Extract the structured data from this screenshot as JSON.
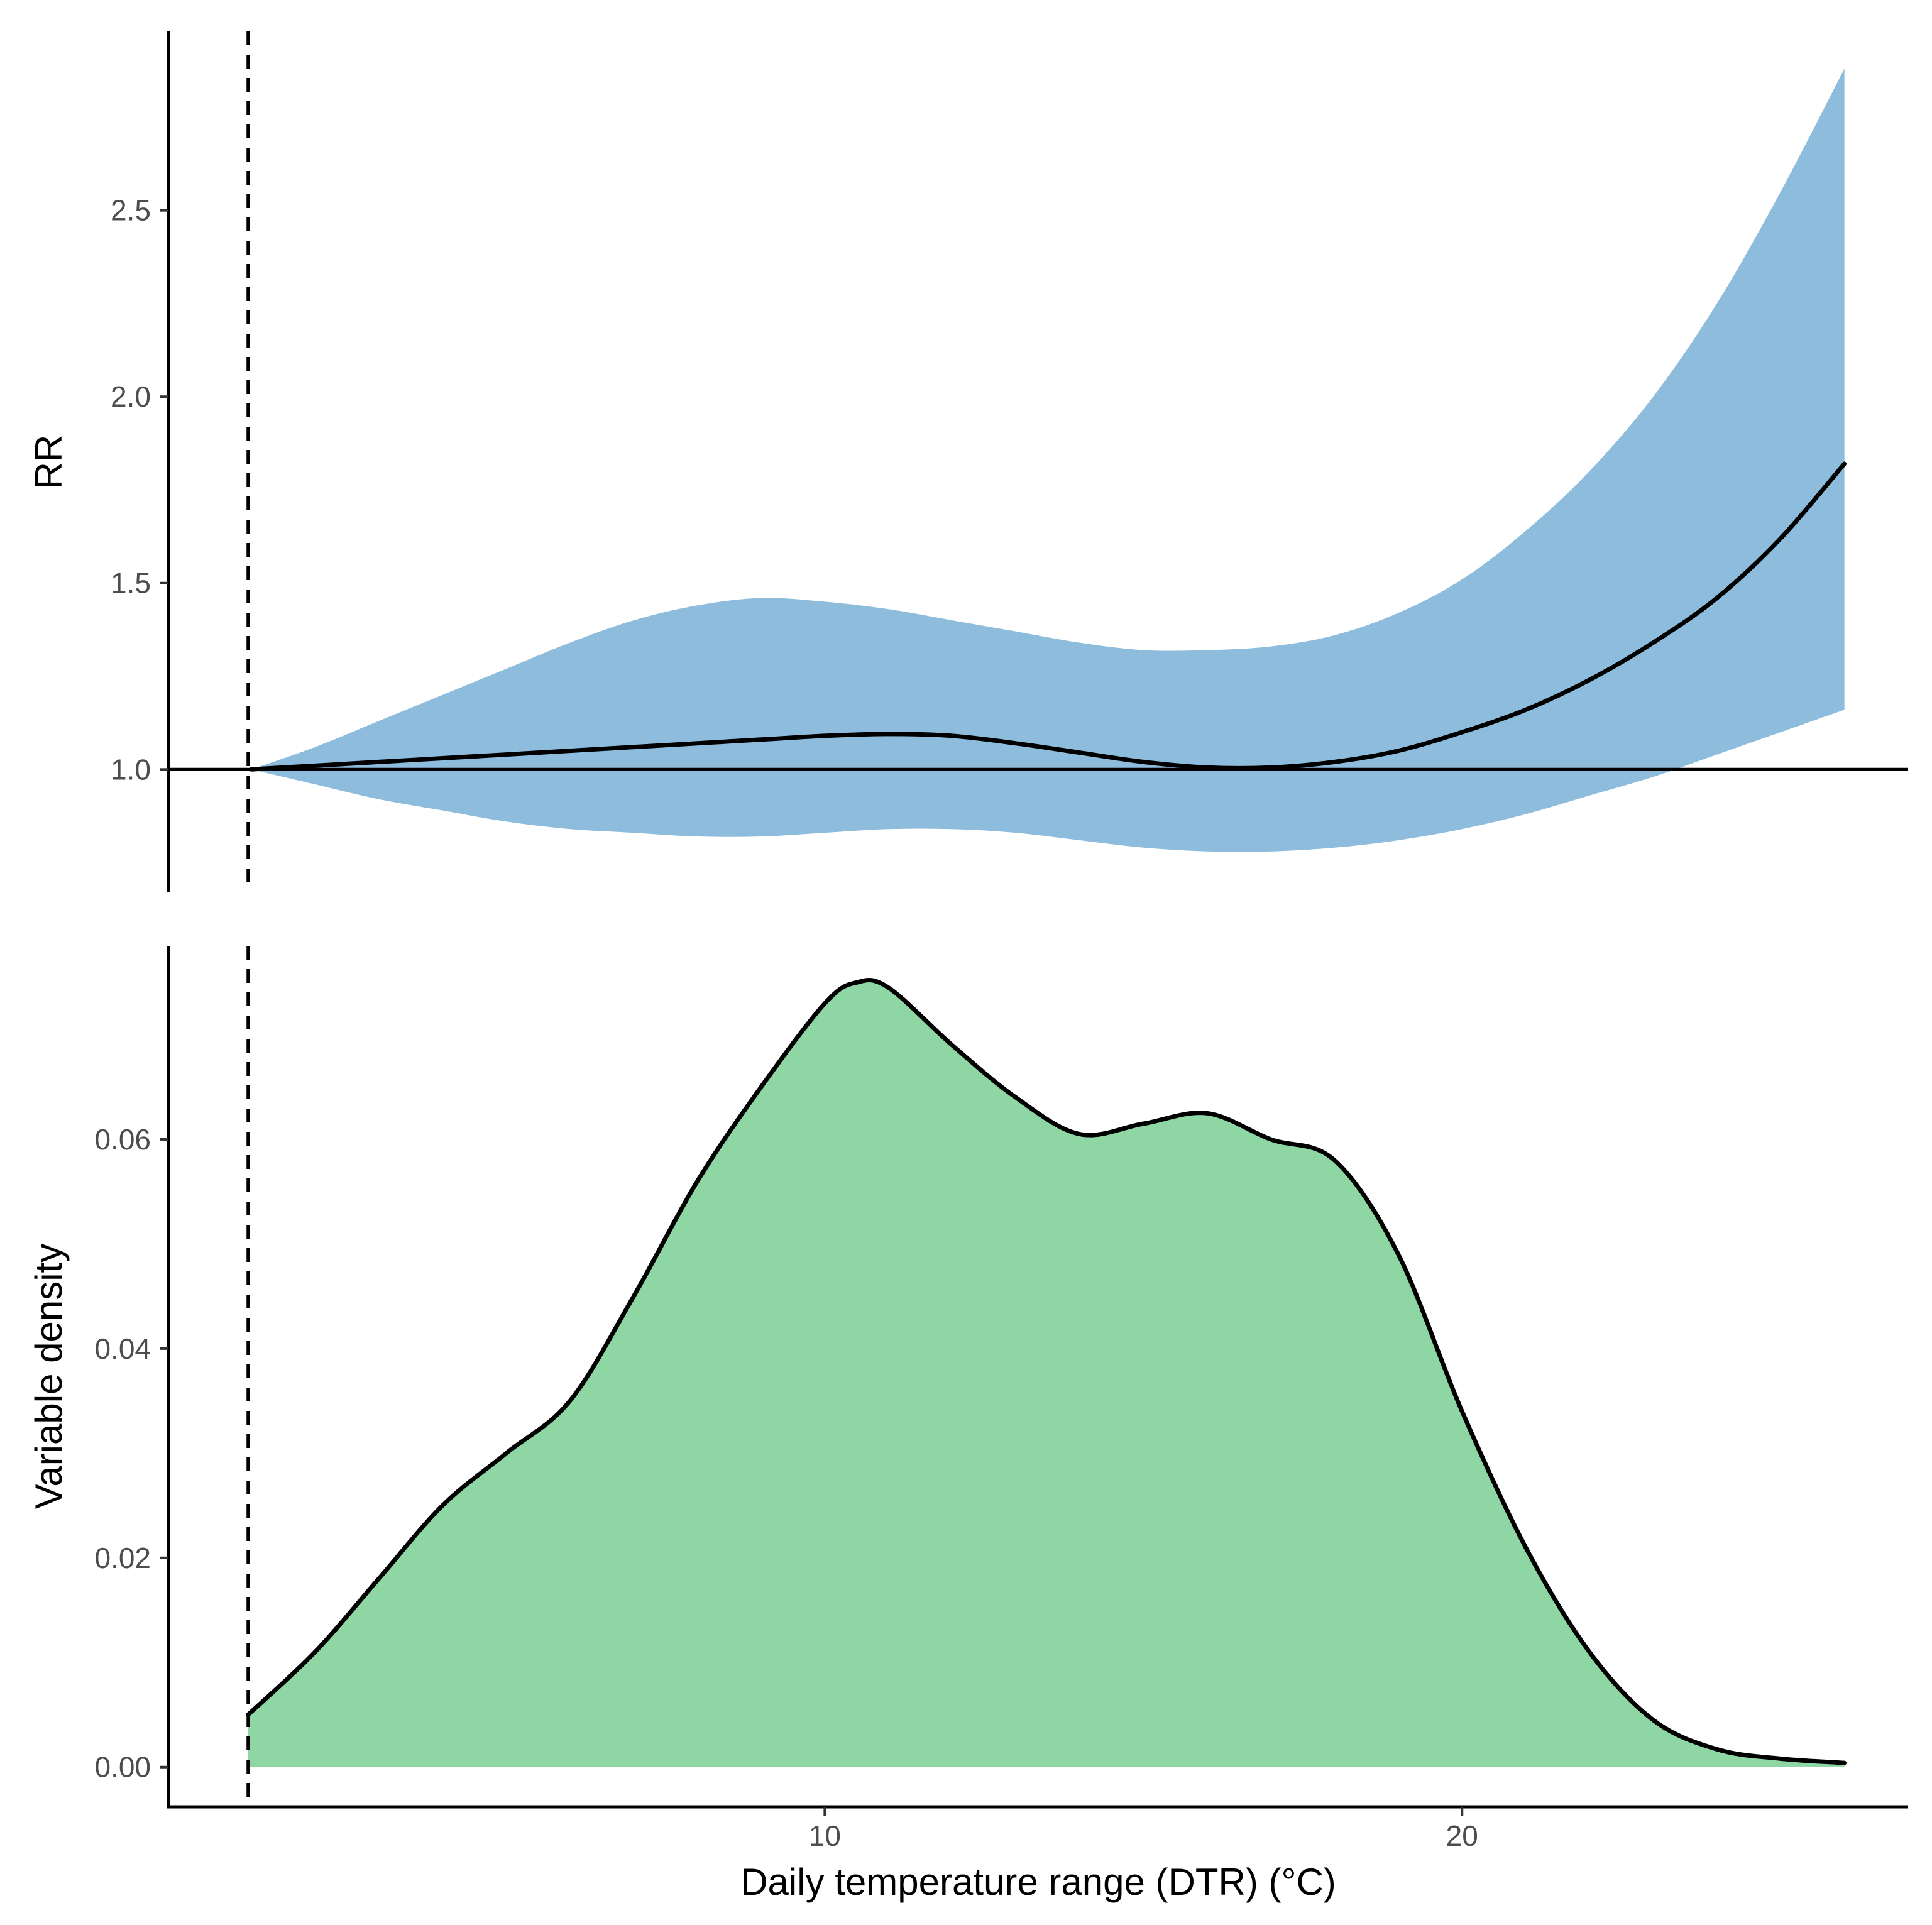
{
  "chart_data": [
    {
      "type": "line",
      "panel": "top",
      "title": "",
      "xlabel": "",
      "ylabel": "RR",
      "xlim": [
        -0.3,
        27.0
      ],
      "ylim": [
        0.67,
        2.98
      ],
      "yticks": [
        1.0,
        1.5,
        2.0,
        2.5
      ],
      "ytick_labels": [
        "1.0",
        "1.5",
        "2.0",
        "2.5"
      ],
      "reference_line_y": 1.0,
      "reference_line_x": 0.95,
      "grid": false,
      "legend": "none",
      "band_color": "#8dbcdc",
      "line_color": "#000000",
      "x": [
        1.0,
        2.0,
        3.0,
        4.0,
        5.0,
        6.0,
        7.0,
        8.0,
        9.0,
        10.0,
        11.0,
        12.0,
        13.0,
        14.0,
        15.0,
        16.0,
        17.0,
        18.0,
        19.0,
        20.0,
        21.0,
        22.0,
        23.0,
        24.0,
        25.0,
        26.0
      ],
      "series": [
        {
          "role": "estimate",
          "values": [
            1.0,
            1.01,
            1.02,
            1.03,
            1.04,
            1.05,
            1.06,
            1.07,
            1.08,
            1.09,
            1.095,
            1.09,
            1.07,
            1.045,
            1.02,
            1.005,
            1.005,
            1.02,
            1.05,
            1.1,
            1.16,
            1.24,
            1.34,
            1.46,
            1.62,
            1.82
          ]
        },
        {
          "role": "upper",
          "values": [
            1.0,
            1.06,
            1.13,
            1.2,
            1.27,
            1.34,
            1.4,
            1.44,
            1.46,
            1.45,
            1.43,
            1.4,
            1.37,
            1.34,
            1.32,
            1.32,
            1.33,
            1.36,
            1.42,
            1.51,
            1.64,
            1.8,
            2.0,
            2.25,
            2.55,
            2.88
          ]
        },
        {
          "role": "lower",
          "values": [
            1.0,
            0.96,
            0.92,
            0.89,
            0.86,
            0.84,
            0.83,
            0.82,
            0.82,
            0.83,
            0.84,
            0.84,
            0.83,
            0.81,
            0.79,
            0.78,
            0.78,
            0.79,
            0.81,
            0.84,
            0.88,
            0.93,
            0.98,
            1.04,
            1.1,
            1.16
          ]
        }
      ]
    },
    {
      "type": "area",
      "panel": "bottom",
      "title": "",
      "xlabel": "Daily temperature range (DTR) (°C)",
      "ylabel": "Variable density",
      "xlim": [
        -0.3,
        27.0
      ],
      "ylim": [
        -0.0038,
        0.0785
      ],
      "xticks": [
        10,
        20
      ],
      "xtick_labels": [
        "10",
        "20"
      ],
      "yticks": [
        0.0,
        0.02,
        0.04,
        0.06
      ],
      "ytick_labels": [
        "0.00",
        "0.02",
        "0.04",
        "0.06"
      ],
      "reference_line_x": 0.95,
      "grid": false,
      "legend": "none",
      "fill_color": "#8ed6a4",
      "line_color": "#000000",
      "x": [
        0.95,
        2.0,
        3.0,
        4.0,
        5.0,
        6.0,
        7.0,
        8.0,
        9.0,
        10.0,
        10.5,
        11.0,
        12.0,
        13.0,
        14.0,
        15.0,
        16.0,
        17.0,
        18.0,
        19.0,
        20.0,
        21.0,
        22.0,
        23.0,
        24.0,
        25.0,
        26.0
      ],
      "values": [
        0.005,
        0.011,
        0.018,
        0.025,
        0.03,
        0.035,
        0.045,
        0.056,
        0.065,
        0.073,
        0.075,
        0.0745,
        0.069,
        0.064,
        0.0605,
        0.0615,
        0.0625,
        0.06,
        0.058,
        0.049,
        0.034,
        0.021,
        0.011,
        0.0045,
        0.0017,
        0.0008,
        0.0004
      ]
    }
  ]
}
